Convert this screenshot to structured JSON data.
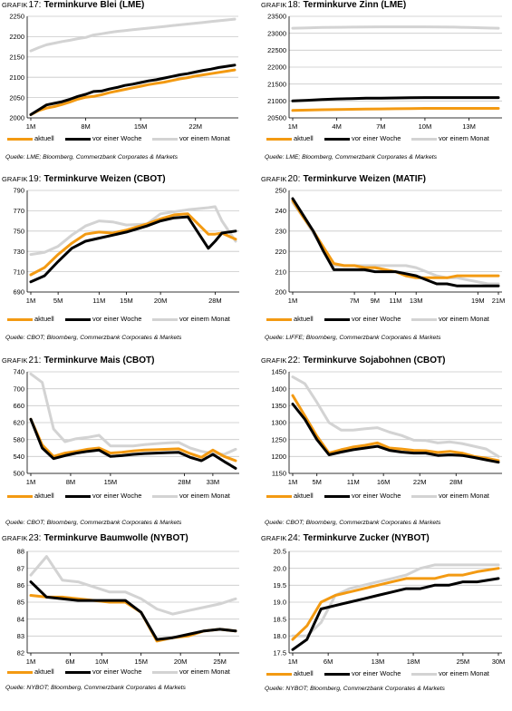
{
  "colors": {
    "aktuell": "#F39A12",
    "woche": "#000000",
    "monat": "#D3D3D3",
    "grid": "#C8C8C8"
  },
  "legend": {
    "aktuell": "aktuell",
    "woche": "vor einer Woche",
    "monat": "vor einem Monat"
  },
  "panels": [
    {
      "title_prefix": "Grafik",
      "title_num": "17:",
      "title_text": "Terminkurve Blei (LME)",
      "source": "Quelle: LME; Bloomberg, Commerzbank Corporates & Markets"
    },
    {
      "title_prefix": "Grafik",
      "title_num": "18:",
      "title_text": "Terminkurve Zinn (LME)",
      "source": "Quelle: LME; Bloomberg, Commerzbank Corporates & Markets"
    },
    {
      "title_prefix": "Grafik",
      "title_num": "19:",
      "title_text": "Terminkurve Weizen (CBOT)",
      "source": "Quelle: CBOT; Bloomberg, Commerzbank Corporates & Markets"
    },
    {
      "title_prefix": "Grafik",
      "title_num": "20:",
      "title_text": "Terminkurve Weizen (MATIF)",
      "source": "Quelle: LIFFE; Bloomberg, Commerzbank Corporates & Markets"
    },
    {
      "title_prefix": "Grafik",
      "title_num": "21:",
      "title_text": "Terminkurve Mais (CBOT)",
      "source": "Quelle: CBOT; Bloomberg, Commerzbank Corporates & Markets"
    },
    {
      "title_prefix": "Grafik",
      "title_num": "22:",
      "title_text": "Terminkurve Sojabohnen (CBOT)",
      "source": "Quelle: CBOT; Bloomberg, Commerzbank Corporates & Markets"
    },
    {
      "title_prefix": "Grafik",
      "title_num": "23:",
      "title_text": "Terminkurve Baumwolle (NYBOT)",
      "source": "Quelle: NYBOT; Bloomberg, Commerzbank Corporates & Markets"
    },
    {
      "title_prefix": "Grafik",
      "title_num": "24:",
      "title_text": "Terminkurve Zucker (NYBOT)",
      "source": "Quelle: NYBOT; Bloomberg, Commerzbank Corporates & Markets"
    }
  ],
  "chart_data": [
    {
      "type": "line",
      "title": "Terminkurve Blei (LME)",
      "x": [
        1,
        2,
        3,
        4,
        5,
        6,
        7,
        8,
        9,
        10,
        11,
        12,
        13,
        14,
        15,
        16,
        17,
        18,
        19,
        20,
        21,
        22,
        23,
        24,
        25,
        26,
        27
      ],
      "xticks": [
        1,
        8,
        15,
        22
      ],
      "xtick_labels": [
        "1M",
        "8M",
        "15M",
        "22M"
      ],
      "ylim": [
        2000,
        2250
      ],
      "yticks": [
        2000,
        2050,
        2100,
        2150,
        2200,
        2250
      ],
      "grid": true,
      "legend": "bottom",
      "series": [
        {
          "name": "aktuell",
          "values": [
            2008,
            2018,
            2024,
            2028,
            2033,
            2039,
            2046,
            2051,
            2053,
            2057,
            2062,
            2066,
            2070,
            2074,
            2078,
            2082,
            2085,
            2088,
            2092,
            2096,
            2099,
            2103,
            2106,
            2109,
            2112,
            2115,
            2118
          ]
        },
        {
          "name": "vor einer Woche",
          "values": [
            2008,
            2020,
            2032,
            2036,
            2040,
            2046,
            2053,
            2058,
            2065,
            2066,
            2071,
            2075,
            2080,
            2083,
            2087,
            2091,
            2094,
            2098,
            2102,
            2106,
            2109,
            2113,
            2117,
            2120,
            2124,
            2127,
            2130
          ]
        },
        {
          "name": "vor einem Monat",
          "values": [
            2165,
            2173,
            2180,
            2184,
            2188,
            2191,
            2195,
            2198,
            2204,
            2207,
            2210,
            2213,
            2215,
            2217,
            2219,
            2221,
            2223,
            2225,
            2227,
            2229,
            2231,
            2233,
            2235,
            2237,
            2239,
            2241,
            2243
          ]
        }
      ]
    },
    {
      "type": "line",
      "title": "Terminkurve Zinn (LME)",
      "x": [
        1,
        2,
        3,
        4,
        5,
        6,
        7,
        8,
        9,
        10,
        11,
        12,
        13,
        14,
        15
      ],
      "xticks": [
        1,
        4,
        7,
        10,
        13
      ],
      "xtick_labels": [
        "1M",
        "4M",
        "7M",
        "10M",
        "13M"
      ],
      "ylim": [
        20500,
        23500
      ],
      "yticks": [
        20500,
        21000,
        21500,
        22000,
        22500,
        23000,
        23500
      ],
      "grid": true,
      "legend": "bottom",
      "series": [
        {
          "name": "aktuell",
          "values": [
            20720,
            20730,
            20740,
            20750,
            20755,
            20760,
            20765,
            20770,
            20775,
            20780,
            20780,
            20780,
            20780,
            20780,
            20780
          ]
        },
        {
          "name": "vor einer Woche",
          "values": [
            21000,
            21020,
            21040,
            21060,
            21070,
            21080,
            21085,
            21090,
            21095,
            21100,
            21100,
            21100,
            21100,
            21100,
            21100
          ]
        },
        {
          "name": "vor einem Monat",
          "values": [
            23150,
            23160,
            23170,
            23175,
            23180,
            23185,
            23190,
            23190,
            23190,
            23190,
            23185,
            23180,
            23170,
            23160,
            23150
          ]
        }
      ]
    },
    {
      "type": "line",
      "title": "Terminkurve Weizen (CBOT)",
      "x": [
        1,
        3,
        5,
        7,
        9,
        11,
        13,
        15,
        18,
        20,
        22,
        24,
        27,
        28,
        29,
        31
      ],
      "xticks": [
        1,
        5,
        11,
        15,
        20,
        28
      ],
      "xtick_labels": [
        "1M",
        "5M",
        "11M",
        "15M",
        "20M",
        "28M"
      ],
      "ylim": [
        690,
        790
      ],
      "yticks": [
        690,
        710,
        730,
        750,
        770,
        790
      ],
      "grid": true,
      "legend": "bottom",
      "series": [
        {
          "name": "aktuell",
          "values": [
            707,
            714,
            727,
            738,
            747,
            749,
            748,
            751,
            757,
            762,
            766,
            767,
            747,
            747,
            748,
            742
          ]
        },
        {
          "name": "vor einer Woche",
          "values": [
            700,
            706,
            720,
            733,
            740,
            743,
            746,
            749,
            755,
            760,
            763,
            764,
            733,
            740,
            748,
            750
          ]
        },
        {
          "name": "vor einem Monat",
          "values": [
            727,
            729,
            735,
            746,
            755,
            760,
            759,
            756,
            757,
            767,
            769,
            771,
            773,
            774,
            760,
            740
          ]
        }
      ]
    },
    {
      "type": "line",
      "title": "Terminkurve Weizen (MATIF)",
      "x": [
        1,
        2,
        3,
        4,
        5,
        6,
        7,
        8,
        9,
        10,
        11,
        12,
        13,
        14,
        15,
        16,
        17,
        18,
        19,
        20,
        21
      ],
      "xticks": [
        1,
        7,
        9,
        11,
        13,
        19,
        21
      ],
      "xtick_labels": [
        "1M",
        "7M",
        "9M",
        "11M",
        "13M",
        "19M",
        "21M"
      ],
      "ylim": [
        200,
        250
      ],
      "yticks": [
        200,
        210,
        220,
        230,
        240,
        250
      ],
      "grid": true,
      "legend": "bottom",
      "series": [
        {
          "name": "aktuell",
          "values": [
            245,
            237,
            230,
            222,
            214,
            213,
            213,
            212,
            212,
            211,
            210,
            208,
            207,
            207,
            207,
            207,
            208,
            208,
            208,
            208,
            208
          ]
        },
        {
          "name": "vor einer Woche",
          "values": [
            246,
            238,
            230,
            220,
            211,
            211,
            211,
            211,
            210,
            210,
            210,
            209,
            208,
            206,
            204,
            204,
            203,
            203,
            203,
            203,
            203
          ]
        },
        {
          "name": "vor einem Monat",
          "values": [
            244,
            237,
            229,
            221,
            213,
            213,
            213,
            213,
            213,
            213,
            213,
            213,
            212,
            210,
            208,
            207,
            207,
            206,
            205,
            204,
            204
          ]
        }
      ]
    },
    {
      "type": "line",
      "title": "Terminkurve Mais (CBOT)",
      "x": [
        1,
        3,
        5,
        7,
        9,
        11,
        13,
        15,
        17,
        19,
        21,
        23,
        25,
        27,
        29,
        31,
        33,
        35,
        37
      ],
      "xticks": [
        1,
        8,
        15,
        28,
        33
      ],
      "xtick_labels": [
        "1M",
        "8M",
        "15M",
        "28M",
        "33M"
      ],
      "ylim": [
        500,
        740
      ],
      "yticks": [
        500,
        540,
        580,
        620,
        660,
        700,
        740
      ],
      "grid": true,
      "legend": "bottom",
      "series": [
        {
          "name": "aktuell",
          "values": [
            628,
            567,
            540,
            548,
            552,
            557,
            560,
            548,
            550,
            553,
            555,
            556,
            557,
            558,
            547,
            538,
            555,
            540,
            530
          ]
        },
        {
          "name": "vor einer Woche",
          "values": [
            628,
            560,
            535,
            542,
            548,
            552,
            555,
            540,
            542,
            545,
            547,
            548,
            549,
            550,
            538,
            530,
            545,
            528,
            512
          ]
        },
        {
          "name": "vor einem Monat",
          "values": [
            735,
            715,
            605,
            575,
            582,
            585,
            590,
            565,
            565,
            565,
            568,
            570,
            572,
            573,
            560,
            552,
            547,
            545,
            557
          ]
        }
      ]
    },
    {
      "type": "line",
      "title": "Terminkurve Sojabohnen (CBOT)",
      "x": [
        1,
        3,
        5,
        7,
        9,
        11,
        13,
        15,
        17,
        19,
        21,
        23,
        25,
        27,
        29,
        31,
        33,
        35
      ],
      "xticks": [
        1,
        5,
        11,
        16,
        22,
        28
      ],
      "xtick_labels": [
        "1M",
        "5M",
        "11M",
        "16M",
        "22M",
        "28M"
      ],
      "ylim": [
        1150,
        1450
      ],
      "yticks": [
        1150,
        1200,
        1250,
        1300,
        1350,
        1400,
        1450
      ],
      "grid": true,
      "legend": "bottom",
      "series": [
        {
          "name": "aktuell",
          "values": [
            1380,
            1320,
            1260,
            1210,
            1220,
            1228,
            1233,
            1240,
            1225,
            1222,
            1218,
            1217,
            1212,
            1215,
            1210,
            1200,
            1195,
            1188
          ]
        },
        {
          "name": "vor einer Woche",
          "values": [
            1355,
            1310,
            1250,
            1205,
            1213,
            1220,
            1225,
            1230,
            1218,
            1213,
            1210,
            1210,
            1203,
            1205,
            1203,
            1197,
            1190,
            1183
          ]
        },
        {
          "name": "vor einem Monat",
          "values": [
            1435,
            1415,
            1360,
            1300,
            1278,
            1278,
            1282,
            1285,
            1272,
            1262,
            1248,
            1247,
            1240,
            1243,
            1238,
            1230,
            1222,
            1200
          ]
        }
      ]
    },
    {
      "type": "line",
      "title": "Terminkurve Baumwolle (NYBOT)",
      "x": [
        1,
        3,
        5,
        7,
        9,
        11,
        13,
        15,
        17,
        19,
        21,
        23,
        25,
        27
      ],
      "xticks": [
        1,
        6,
        10,
        15,
        20,
        25
      ],
      "xtick_labels": [
        "1M",
        "6M",
        "10M",
        "15M",
        "20M",
        "25M"
      ],
      "ylim": [
        82,
        88
      ],
      "yticks": [
        82,
        83,
        84,
        85,
        86,
        87,
        88
      ],
      "grid": true,
      "legend": "bottom",
      "series": [
        {
          "name": "aktuell",
          "values": [
            85.4,
            85.3,
            85.3,
            85.2,
            85.1,
            85.0,
            85.0,
            84.4,
            82.7,
            82.9,
            83.0,
            83.3,
            83.4,
            83.3
          ]
        },
        {
          "name": "vor einer Woche",
          "values": [
            86.2,
            85.3,
            85.2,
            85.1,
            85.1,
            85.1,
            85.1,
            84.4,
            82.8,
            82.9,
            83.1,
            83.3,
            83.4,
            83.3
          ]
        },
        {
          "name": "vor einem Monat",
          "values": [
            86.6,
            87.7,
            86.3,
            86.2,
            85.9,
            85.6,
            85.6,
            85.2,
            84.6,
            84.3,
            84.5,
            84.7,
            84.9,
            85.2
          ]
        }
      ]
    },
    {
      "type": "line",
      "title": "Terminkurve Zucker (NYBOT)",
      "x": [
        1,
        3,
        5,
        7,
        9,
        11,
        13,
        15,
        17,
        19,
        21,
        23,
        25,
        27,
        30
      ],
      "xticks": [
        1,
        6,
        13,
        18,
        25,
        30
      ],
      "xtick_labels": [
        "1M",
        "6M",
        "13M",
        "18M",
        "25M",
        "30M"
      ],
      "ylim": [
        17.5,
        20.5
      ],
      "yticks": [
        17.5,
        18.0,
        18.5,
        19.0,
        19.5,
        20.0,
        20.5
      ],
      "ytick_labels": [
        "17.5",
        "18.0",
        "18.5",
        "19.0",
        "19.5",
        "20.0",
        "20.5"
      ],
      "grid": true,
      "legend": "bottom",
      "series": [
        {
          "name": "aktuell",
          "values": [
            17.9,
            18.3,
            19.0,
            19.2,
            19.3,
            19.4,
            19.5,
            19.6,
            19.7,
            19.7,
            19.7,
            19.8,
            19.8,
            19.9,
            20.0
          ]
        },
        {
          "name": "vor einer Woche",
          "values": [
            17.6,
            17.9,
            18.8,
            18.9,
            19.0,
            19.1,
            19.2,
            19.3,
            19.4,
            19.4,
            19.5,
            19.5,
            19.6,
            19.6,
            19.7
          ]
        },
        {
          "name": "vor einem Monat",
          "values": [
            18.0,
            18.0,
            18.4,
            19.2,
            19.4,
            19.5,
            19.6,
            19.7,
            19.8,
            20.0,
            20.1,
            20.1,
            20.1,
            20.1,
            20.1
          ]
        }
      ]
    }
  ]
}
